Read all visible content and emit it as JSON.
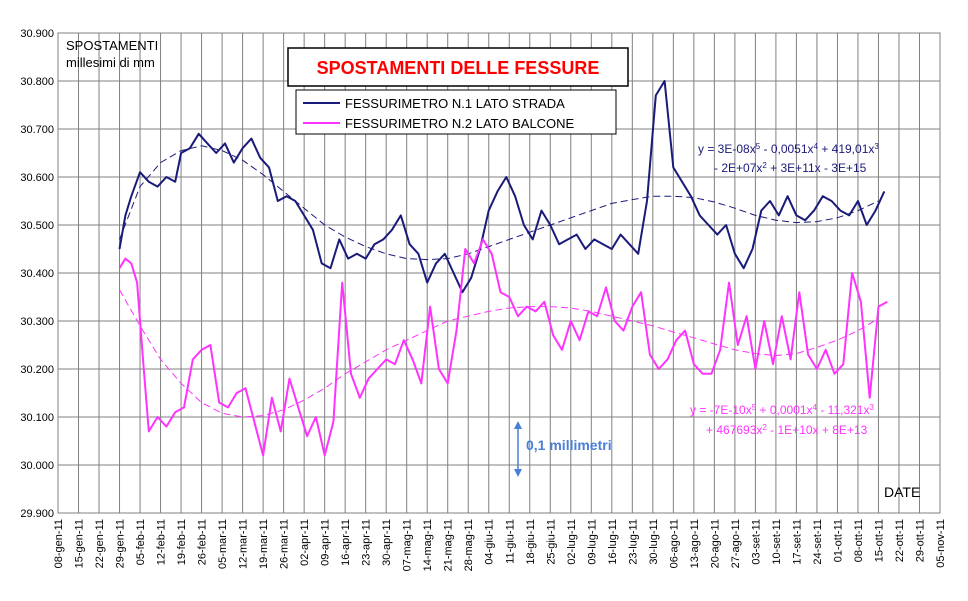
{
  "chart_data": {
    "type": "line",
    "title": "SPOSTAMENTI DELLE FESSURE",
    "ylabel_line1": "SPOSTAMENTI",
    "ylabel_line2": "millesimi di mm",
    "xlabel": "DATE",
    "ylim": [
      29.9,
      30.9
    ],
    "y_ticks": [
      "29.900",
      "30.000",
      "30.100",
      "30.200",
      "30.300",
      "30.400",
      "30.500",
      "30.600",
      "30.700",
      "30.800",
      "30.900"
    ],
    "x_ticks": [
      "08-gen-11",
      "15-gen-11",
      "22-gen-11",
      "29-gen-11",
      "05-feb-11",
      "12-feb-11",
      "19-feb-11",
      "26-feb-11",
      "05-mar-11",
      "12-mar-11",
      "19-mar-11",
      "26-mar-11",
      "02-apr-11",
      "09-apr-11",
      "16-apr-11",
      "23-apr-11",
      "30-apr-11",
      "07-mag-11",
      "14-mag-11",
      "21-mag-11",
      "28-mag-11",
      "04-giu-11",
      "11-giu-11",
      "18-giu-11",
      "25-giu-11",
      "02-lug-11",
      "09-lug-11",
      "16-lug-11",
      "23-lug-11",
      "30-lug-11",
      "06-ago-11",
      "13-ago-11",
      "20-ago-11",
      "27-ago-11",
      "03-set-11",
      "10-set-11",
      "17-set-11",
      "24-set-11",
      "01-ott-11",
      "08-ott-11",
      "15-ott-11",
      "22-ott-11",
      "29-ott-11",
      "05-nov-11"
    ],
    "grid": true,
    "legend_position": "top-center",
    "scale_marker_label": "0,1 millimetri",
    "series": [
      {
        "name": "FESSURIMETRO N.1 LATO  STRADA",
        "color": "#1a1a7a",
        "x": [
          "29-gen-11",
          "31-gen-11",
          "02-feb-11",
          "05-feb-11",
          "08-feb-11",
          "11-feb-11",
          "14-feb-11",
          "17-feb-11",
          "19-feb-11",
          "22-feb-11",
          "25-feb-11",
          "28-feb-11",
          "03-mar-11",
          "06-mar-11",
          "09-mar-11",
          "12-mar-11",
          "15-mar-11",
          "18-mar-11",
          "21-mar-11",
          "24-mar-11",
          "27-mar-11",
          "30-mar-11",
          "02-apr-11",
          "05-apr-11",
          "08-apr-11",
          "11-apr-11",
          "14-apr-11",
          "17-apr-11",
          "20-apr-11",
          "23-apr-11",
          "26-apr-11",
          "29-apr-11",
          "02-mag-11",
          "05-mag-11",
          "08-mag-11",
          "11-mag-11",
          "14-mag-11",
          "17-mag-11",
          "20-mag-11",
          "23-mag-11",
          "26-mag-11",
          "29-mag-11",
          "01-giu-11",
          "04-giu-11",
          "07-giu-11",
          "10-giu-11",
          "13-giu-11",
          "16-giu-11",
          "19-giu-11",
          "22-giu-11",
          "25-giu-11",
          "28-giu-11",
          "01-lug-11",
          "04-lug-11",
          "07-lug-11",
          "10-lug-11",
          "13-lug-11",
          "16-lug-11",
          "19-lug-11",
          "22-lug-11",
          "25-lug-11",
          "28-lug-11",
          "31-lug-11",
          "03-ago-11",
          "06-ago-11",
          "09-ago-11",
          "12-ago-11",
          "15-ago-11",
          "18-ago-11",
          "21-ago-11",
          "24-ago-11",
          "27-ago-11",
          "30-ago-11",
          "02-set-11",
          "05-set-11",
          "08-set-11",
          "11-set-11",
          "14-set-11",
          "17-set-11",
          "20-set-11",
          "23-set-11",
          "26-set-11",
          "29-set-11",
          "02-ott-11",
          "05-ott-11",
          "08-ott-11",
          "11-ott-11",
          "14-ott-11",
          "17-ott-11"
        ],
        "values": [
          30.45,
          30.52,
          30.56,
          30.61,
          30.59,
          30.58,
          30.6,
          30.59,
          30.65,
          30.66,
          30.69,
          30.67,
          30.65,
          30.67,
          30.63,
          30.66,
          30.68,
          30.64,
          30.62,
          30.55,
          30.56,
          30.55,
          30.52,
          30.49,
          30.42,
          30.41,
          30.47,
          30.43,
          30.44,
          30.43,
          30.46,
          30.47,
          30.49,
          30.52,
          30.46,
          30.44,
          30.38,
          30.42,
          30.44,
          30.4,
          30.36,
          30.39,
          30.45,
          30.53,
          30.57,
          30.6,
          30.56,
          30.5,
          30.47,
          30.53,
          30.5,
          30.46,
          30.47,
          30.48,
          30.45,
          30.47,
          30.46,
          30.45,
          30.48,
          30.46,
          30.44,
          30.55,
          30.77,
          30.8,
          30.62,
          30.59,
          30.56,
          30.52,
          30.5,
          30.48,
          30.5,
          30.44,
          30.41,
          30.45,
          30.53,
          30.55,
          30.52,
          30.56,
          30.52,
          30.51,
          30.53,
          30.56,
          30.55,
          30.53,
          30.52,
          30.55,
          30.5,
          30.53,
          30.57
        ]
      },
      {
        "name": "FESSURIMETRO N.2 LATO BALCONE",
        "color": "#ff33ff",
        "x": [
          "29-gen-11",
          "31-gen-11",
          "02-feb-11",
          "04-feb-11",
          "06-feb-11",
          "08-feb-11",
          "11-feb-11",
          "14-feb-11",
          "17-feb-11",
          "20-feb-11",
          "23-feb-11",
          "26-feb-11",
          "01-mar-11",
          "04-mar-11",
          "07-mar-11",
          "10-mar-11",
          "13-mar-11",
          "16-mar-11",
          "19-mar-11",
          "22-mar-11",
          "25-mar-11",
          "28-mar-11",
          "31-mar-11",
          "03-apr-11",
          "06-apr-11",
          "09-apr-11",
          "12-apr-11",
          "15-apr-11",
          "18-apr-11",
          "21-apr-11",
          "24-apr-11",
          "27-apr-11",
          "30-apr-11",
          "03-mag-11",
          "06-mag-11",
          "09-mag-11",
          "12-mag-11",
          "15-mag-11",
          "18-mag-11",
          "21-mag-11",
          "24-mag-11",
          "27-mag-11",
          "30-mag-11",
          "02-giu-11",
          "05-giu-11",
          "08-giu-11",
          "11-giu-11",
          "14-giu-11",
          "17-giu-11",
          "20-giu-11",
          "23-giu-11",
          "26-giu-11",
          "29-giu-11",
          "02-lug-11",
          "05-lug-11",
          "08-lug-11",
          "11-lug-11",
          "14-lug-11",
          "17-lug-11",
          "20-lug-11",
          "23-lug-11",
          "26-lug-11",
          "29-lug-11",
          "01-ago-11",
          "04-ago-11",
          "07-ago-11",
          "10-ago-11",
          "13-ago-11",
          "16-ago-11",
          "19-ago-11",
          "22-ago-11",
          "25-ago-11",
          "28-ago-11",
          "31-ago-11",
          "03-set-11",
          "06-set-11",
          "09-set-11",
          "12-set-11",
          "15-set-11",
          "18-set-11",
          "21-set-11",
          "24-set-11",
          "27-set-11",
          "30-set-11",
          "03-ott-11",
          "06-ott-11",
          "09-ott-11",
          "12-ott-11",
          "15-ott-11",
          "18-ott-11"
        ],
        "values": [
          30.41,
          30.43,
          30.42,
          30.38,
          30.22,
          30.07,
          30.1,
          30.08,
          30.11,
          30.12,
          30.22,
          30.24,
          30.25,
          30.13,
          30.12,
          30.15,
          30.16,
          30.09,
          30.02,
          30.14,
          30.07,
          30.18,
          30.12,
          30.06,
          30.1,
          30.02,
          30.09,
          30.38,
          30.19,
          30.14,
          30.18,
          30.2,
          30.22,
          30.21,
          30.26,
          30.22,
          30.17,
          30.33,
          30.2,
          30.17,
          30.28,
          30.45,
          30.42,
          30.47,
          30.44,
          30.36,
          30.35,
          30.31,
          30.33,
          30.32,
          30.34,
          30.27,
          30.24,
          30.3,
          30.26,
          30.32,
          30.31,
          30.37,
          30.3,
          30.28,
          30.33,
          30.36,
          30.23,
          30.2,
          30.22,
          30.26,
          30.28,
          30.21,
          30.19,
          30.19,
          30.24,
          30.38,
          30.25,
          30.31,
          30.2,
          30.3,
          30.21,
          30.31,
          30.22,
          30.36,
          30.23,
          30.2,
          30.24,
          30.19,
          30.21,
          30.4,
          30.34,
          30.14,
          30.33,
          30.34
        ]
      }
    ],
    "trendlines": [
      {
        "series": "FESSURIMETRO N.1 LATO  STRADA",
        "style": "dashed",
        "color": "#1a1a7a",
        "eq_line1": "y = 3E-08x^5 - 0,0051x^4 + 419,01x^3",
        "eq_line2": "- 2E+07x^2 + 3E+11x - 3E+15",
        "x": [
          "29-gen-11",
          "05-feb-11",
          "12-feb-11",
          "19-feb-11",
          "26-feb-11",
          "05-mar-11",
          "12-mar-11",
          "19-mar-11",
          "26-mar-11",
          "02-apr-11",
          "09-apr-11",
          "16-apr-11",
          "23-apr-11",
          "30-apr-11",
          "07-mag-11",
          "14-mag-11",
          "21-mag-11",
          "28-mag-11",
          "04-giu-11",
          "11-giu-11",
          "18-giu-11",
          "25-giu-11",
          "02-lug-11",
          "09-lug-11",
          "16-lug-11",
          "23-lug-11",
          "30-lug-11",
          "06-ago-11",
          "13-ago-11",
          "20-ago-11",
          "27-ago-11",
          "03-set-11",
          "10-set-11",
          "17-set-11",
          "24-set-11",
          "01-ott-11",
          "08-ott-11",
          "15-ott-11"
        ],
        "values": [
          30.47,
          30.58,
          30.63,
          30.655,
          30.665,
          30.655,
          30.635,
          30.605,
          30.57,
          30.535,
          30.5,
          30.475,
          30.455,
          30.44,
          30.43,
          30.428,
          30.43,
          30.44,
          30.455,
          30.47,
          30.485,
          30.5,
          30.515,
          30.53,
          30.545,
          30.553,
          30.56,
          30.56,
          30.557,
          30.548,
          30.535,
          30.52,
          30.51,
          30.505,
          30.507,
          30.515,
          30.53,
          30.55
        ]
      },
      {
        "series": "FESSURIMETRO N.2 LATO BALCONE",
        "style": "dashed",
        "color": "#ff33ff",
        "eq_line1": "y = -7E-10x^5 + 0,0001x^4 - 11,321x^3",
        "eq_line2": "+ 467693x^2 - 1E+10x + 8E+13",
        "x": [
          "29-gen-11",
          "05-feb-11",
          "12-feb-11",
          "19-feb-11",
          "26-feb-11",
          "05-mar-11",
          "12-mar-11",
          "19-mar-11",
          "26-mar-11",
          "02-apr-11",
          "09-apr-11",
          "16-apr-11",
          "23-apr-11",
          "30-apr-11",
          "07-mag-11",
          "14-mag-11",
          "21-mag-11",
          "28-mag-11",
          "04-giu-11",
          "11-giu-11",
          "18-giu-11",
          "25-giu-11",
          "02-lug-11",
          "09-lug-11",
          "16-lug-11",
          "23-lug-11",
          "30-lug-11",
          "06-ago-11",
          "13-ago-11",
          "20-ago-11",
          "27-ago-11",
          "03-set-11",
          "10-set-11",
          "17-set-11",
          "24-set-11",
          "01-ott-11",
          "08-ott-11",
          "15-ott-11"
        ],
        "values": [
          30.365,
          30.29,
          30.22,
          30.17,
          30.13,
          30.108,
          30.1,
          30.103,
          30.115,
          30.135,
          30.16,
          30.19,
          30.215,
          30.24,
          30.26,
          30.28,
          30.3,
          30.31,
          30.32,
          30.327,
          30.33,
          30.33,
          30.327,
          30.32,
          30.31,
          30.3,
          30.29,
          30.277,
          30.265,
          30.252,
          30.24,
          30.232,
          30.228,
          30.232,
          30.245,
          30.26,
          30.28,
          30.305
        ]
      }
    ]
  }
}
